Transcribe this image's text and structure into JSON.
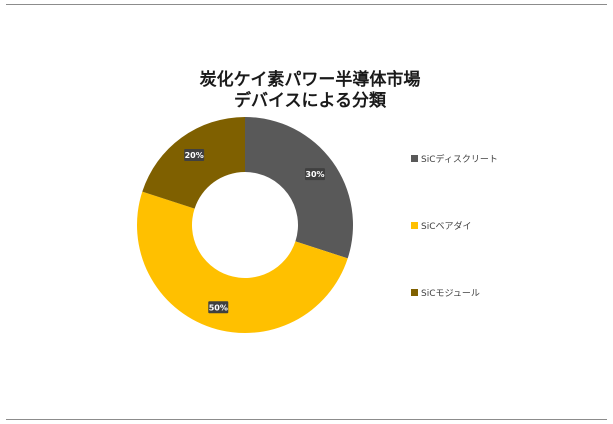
{
  "chart_data": {
    "type": "pie",
    "title": [
      "炭化ケイ素パワー半導体市場",
      "デバイスによる分類"
    ],
    "categories": [
      "SiCディスクリート",
      "SiCベアダイ",
      "SiCモジュール"
    ],
    "values": [
      30,
      50,
      20
    ],
    "value_labels": [
      "30%",
      "50%",
      "20%"
    ],
    "colors": [
      "#595959",
      "#ffc000",
      "#7f6000"
    ],
    "legend_position": "right"
  }
}
